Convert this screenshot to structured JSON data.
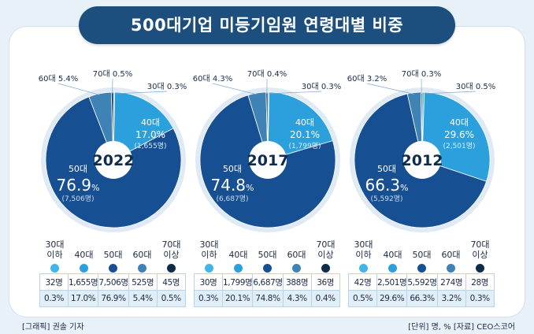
{
  "title": "500대기업 미등기임원 연령대별 비중",
  "colors": {
    "s30": "#42b4e6",
    "s40": "#2ba0dc",
    "s50": "#174f93",
    "s60": "#3f82b6",
    "s70": "#0f2c4a"
  },
  "legend_labels": [
    "30대 이하",
    "40대",
    "50대",
    "60대",
    "70대 이상"
  ],
  "chart_data": [
    {
      "type": "pie",
      "year": "2022",
      "slices": [
        {
          "name": "30대",
          "pct": 0.3,
          "count": 32,
          "pct_label": "0.3%",
          "count_label": "32명",
          "callout": "30대 0.3%"
        },
        {
          "name": "40대",
          "pct": 17.0,
          "count": 1655,
          "pct_label": "17.0%",
          "count_label": "1,655명",
          "inner": {
            "name": "40대",
            "value": "17.0%",
            "count": "(1,655명)"
          }
        },
        {
          "name": "50대",
          "pct": 76.9,
          "count": 7506,
          "pct_label": "76.9%",
          "count_label": "7,506명",
          "inner": {
            "name": "50대",
            "value": "76.9",
            "unit": "%",
            "count": "(7,506명)"
          }
        },
        {
          "name": "60대",
          "pct": 5.4,
          "count": 525,
          "pct_label": "5.4%",
          "count_label": "525명",
          "callout": "60대 5.4%"
        },
        {
          "name": "70대",
          "pct": 0.5,
          "count": 45,
          "pct_label": "0.5%",
          "count_label": "45명",
          "callout": "70대 0.5%"
        }
      ]
    },
    {
      "type": "pie",
      "year": "2017",
      "slices": [
        {
          "name": "30대",
          "pct": 0.3,
          "count": 30,
          "pct_label": "0.3%",
          "count_label": "30명",
          "callout": "30대 0.3%"
        },
        {
          "name": "40대",
          "pct": 20.1,
          "count": 1799,
          "pct_label": "20.1%",
          "count_label": "1,799명",
          "inner": {
            "name": "40대",
            "value": "20.1%",
            "count": "(1,799명)"
          }
        },
        {
          "name": "50대",
          "pct": 74.8,
          "count": 6687,
          "pct_label": "74.8%",
          "count_label": "6,687명",
          "inner": {
            "name": "50대",
            "value": "74.8",
            "unit": "%",
            "count": "(6,687명)"
          }
        },
        {
          "name": "60대",
          "pct": 4.3,
          "count": 388,
          "pct_label": "4.3%",
          "count_label": "388명",
          "callout": "60대 4.3%"
        },
        {
          "name": "70대",
          "pct": 0.4,
          "count": 36,
          "pct_label": "0.4%",
          "count_label": "36명",
          "callout": "70대 0.4%"
        }
      ]
    },
    {
      "type": "pie",
      "year": "2012",
      "slices": [
        {
          "name": "30대",
          "pct": 0.5,
          "count": 42,
          "pct_label": "0.5%",
          "count_label": "42명",
          "callout": "30대 0.5%"
        },
        {
          "name": "40대",
          "pct": 29.6,
          "count": 2501,
          "pct_label": "29.6%",
          "count_label": "2,501명",
          "inner": {
            "name": "40대",
            "value": "29.6%",
            "count": "(2,501명)"
          }
        },
        {
          "name": "50대",
          "pct": 66.3,
          "count": 5592,
          "pct_label": "66.3%",
          "count_label": "5,592명",
          "inner": {
            "name": "50대",
            "value": "66.3",
            "unit": "%",
            "count": "(5,592명)"
          }
        },
        {
          "name": "60대",
          "pct": 3.2,
          "count": 274,
          "pct_label": "3.2%",
          "count_label": "274명",
          "callout": "60대 3.2%"
        },
        {
          "name": "70대",
          "pct": 0.3,
          "count": 28,
          "pct_label": "0.3%",
          "count_label": "28명",
          "callout": "70대 0.3%"
        }
      ]
    }
  ],
  "footer": {
    "left": "[그래픽] 권솔 기자",
    "right": "[단위] 명, %  [자료] CEO스코어"
  }
}
